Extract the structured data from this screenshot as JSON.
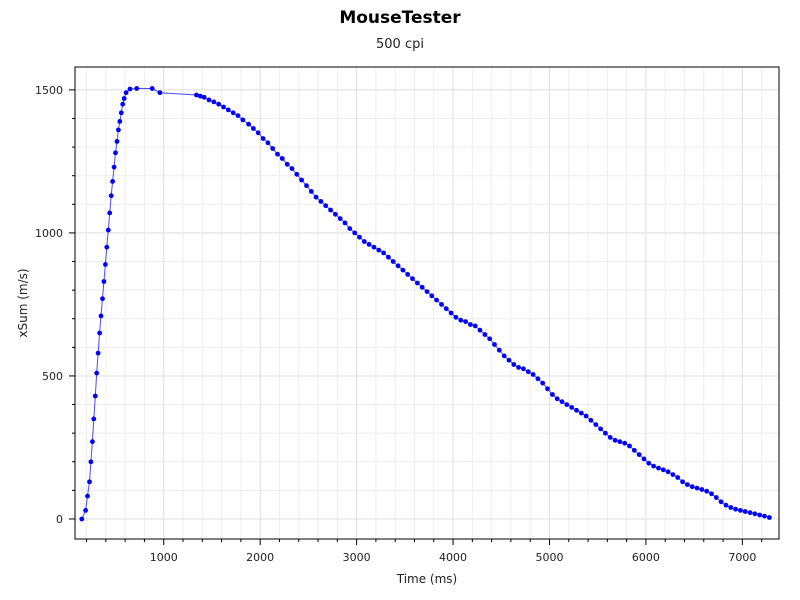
{
  "chart_data": {
    "type": "scatter",
    "title": "MouseTester",
    "subtitle": "500 cpi",
    "xlabel": "Time (ms)",
    "ylabel": "xSum (m/s)",
    "xlim": [
      80,
      7380
    ],
    "ylim": [
      -70,
      1580
    ],
    "x_ticks": [
      1000,
      2000,
      3000,
      4000,
      5000,
      6000,
      7000
    ],
    "y_ticks": [
      0,
      500,
      1000,
      1500
    ],
    "grid": true,
    "point_color": "#0000ff",
    "line_color": "#0000ff",
    "series": [
      {
        "points": [
          [
            150,
            0
          ],
          [
            190,
            30
          ],
          [
            210,
            80
          ],
          [
            230,
            130
          ],
          [
            245,
            200
          ],
          [
            260,
            270
          ],
          [
            275,
            350
          ],
          [
            290,
            430
          ],
          [
            305,
            510
          ],
          [
            320,
            580
          ],
          [
            335,
            650
          ],
          [
            350,
            710
          ],
          [
            365,
            770
          ],
          [
            380,
            830
          ],
          [
            395,
            890
          ],
          [
            410,
            950
          ],
          [
            425,
            1010
          ],
          [
            440,
            1070
          ],
          [
            455,
            1130
          ],
          [
            470,
            1180
          ],
          [
            485,
            1230
          ],
          [
            500,
            1280
          ],
          [
            515,
            1320
          ],
          [
            530,
            1360
          ],
          [
            545,
            1390
          ],
          [
            560,
            1420
          ],
          [
            575,
            1450
          ],
          [
            590,
            1470
          ],
          [
            610,
            1490
          ],
          [
            650,
            1503
          ],
          [
            720,
            1505
          ],
          [
            880,
            1505
          ],
          [
            960,
            1490
          ],
          [
            1340,
            1482
          ],
          [
            1380,
            1478
          ],
          [
            1420,
            1474
          ],
          [
            1470,
            1465
          ],
          [
            1520,
            1458
          ],
          [
            1570,
            1450
          ],
          [
            1620,
            1440
          ],
          [
            1670,
            1430
          ],
          [
            1720,
            1420
          ],
          [
            1770,
            1410
          ],
          [
            1820,
            1395
          ],
          [
            1880,
            1380
          ],
          [
            1930,
            1365
          ],
          [
            1980,
            1350
          ],
          [
            2030,
            1330
          ],
          [
            2080,
            1315
          ],
          [
            2130,
            1295
          ],
          [
            2180,
            1275
          ],
          [
            2230,
            1260
          ],
          [
            2280,
            1240
          ],
          [
            2330,
            1225
          ],
          [
            2380,
            1205
          ],
          [
            2430,
            1185
          ],
          [
            2480,
            1165
          ],
          [
            2530,
            1145
          ],
          [
            2580,
            1125
          ],
          [
            2630,
            1110
          ],
          [
            2680,
            1095
          ],
          [
            2730,
            1080
          ],
          [
            2780,
            1065
          ],
          [
            2830,
            1050
          ],
          [
            2880,
            1035
          ],
          [
            2930,
            1015
          ],
          [
            2980,
            1000
          ],
          [
            3030,
            985
          ],
          [
            3080,
            970
          ],
          [
            3130,
            960
          ],
          [
            3180,
            950
          ],
          [
            3230,
            940
          ],
          [
            3280,
            930
          ],
          [
            3330,
            915
          ],
          [
            3380,
            900
          ],
          [
            3430,
            885
          ],
          [
            3480,
            870
          ],
          [
            3530,
            855
          ],
          [
            3580,
            840
          ],
          [
            3630,
            825
          ],
          [
            3680,
            810
          ],
          [
            3730,
            795
          ],
          [
            3780,
            780
          ],
          [
            3830,
            765
          ],
          [
            3880,
            750
          ],
          [
            3930,
            735
          ],
          [
            3980,
            720
          ],
          [
            4030,
            705
          ],
          [
            4080,
            695
          ],
          [
            4130,
            690
          ],
          [
            4180,
            680
          ],
          [
            4230,
            675
          ],
          [
            4280,
            660
          ],
          [
            4330,
            645
          ],
          [
            4380,
            630
          ],
          [
            4430,
            610
          ],
          [
            4480,
            590
          ],
          [
            4530,
            570
          ],
          [
            4580,
            555
          ],
          [
            4630,
            540
          ],
          [
            4680,
            530
          ],
          [
            4730,
            525
          ],
          [
            4780,
            515
          ],
          [
            4830,
            505
          ],
          [
            4880,
            490
          ],
          [
            4930,
            475
          ],
          [
            4980,
            455
          ],
          [
            5030,
            435
          ],
          [
            5080,
            420
          ],
          [
            5130,
            410
          ],
          [
            5180,
            400
          ],
          [
            5230,
            390
          ],
          [
            5280,
            380
          ],
          [
            5330,
            370
          ],
          [
            5380,
            360
          ],
          [
            5430,
            345
          ],
          [
            5480,
            330
          ],
          [
            5530,
            315
          ],
          [
            5580,
            300
          ],
          [
            5630,
            285
          ],
          [
            5680,
            275
          ],
          [
            5730,
            270
          ],
          [
            5780,
            265
          ],
          [
            5830,
            255
          ],
          [
            5880,
            240
          ],
          [
            5930,
            225
          ],
          [
            5980,
            210
          ],
          [
            6030,
            195
          ],
          [
            6080,
            185
          ],
          [
            6130,
            178
          ],
          [
            6180,
            172
          ],
          [
            6230,
            165
          ],
          [
            6280,
            155
          ],
          [
            6330,
            145
          ],
          [
            6380,
            130
          ],
          [
            6430,
            120
          ],
          [
            6480,
            113
          ],
          [
            6530,
            108
          ],
          [
            6580,
            103
          ],
          [
            6630,
            97
          ],
          [
            6680,
            88
          ],
          [
            6730,
            75
          ],
          [
            6780,
            60
          ],
          [
            6830,
            48
          ],
          [
            6880,
            40
          ],
          [
            6930,
            34
          ],
          [
            6980,
            30
          ],
          [
            7030,
            26
          ],
          [
            7080,
            22
          ],
          [
            7130,
            18
          ],
          [
            7180,
            14
          ],
          [
            7230,
            10
          ],
          [
            7280,
            5
          ]
        ]
      }
    ]
  }
}
